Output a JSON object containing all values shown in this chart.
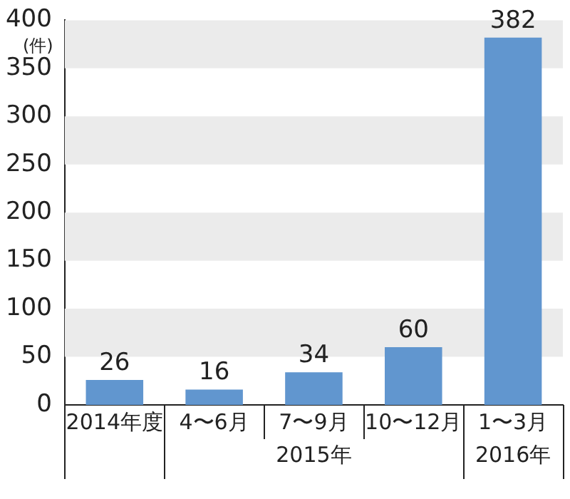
{
  "chart_data": {
    "type": "bar",
    "ylabel": "(件)",
    "categories": [
      "2014年度",
      "4〜6月",
      "7〜9月",
      "10〜12月",
      "1〜3月"
    ],
    "values": [
      26,
      16,
      34,
      60,
      382
    ],
    "color": "#6196cf",
    "data_labels": true,
    "ylim": [
      0,
      400
    ],
    "yticks": [
      0,
      50,
      100,
      150,
      200,
      250,
      300,
      350,
      400
    ],
    "grid": false,
    "bands": [
      {
        "axis": "y",
        "from": 50,
        "to": 100,
        "color": "#ebebeb"
      },
      {
        "axis": "y",
        "from": 150,
        "to": 200,
        "color": "#ebebeb"
      },
      {
        "axis": "y",
        "from": 250,
        "to": 300,
        "color": "#ebebeb"
      },
      {
        "axis": "y",
        "from": 350,
        "to": 400,
        "color": "#ebebeb"
      }
    ],
    "annotations": [
      "2015年",
      "2016年"
    ],
    "legend": false
  }
}
